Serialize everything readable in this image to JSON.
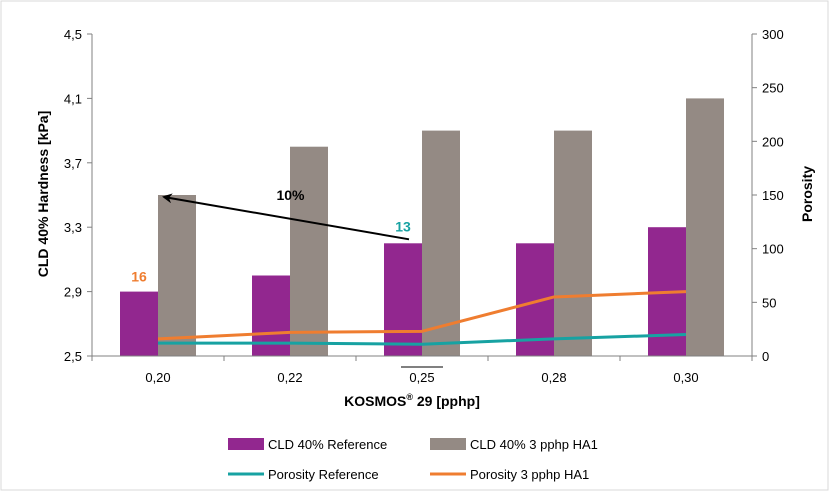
{
  "chart_data": {
    "type": "bar",
    "categories": [
      "0,20",
      "0,22",
      "0,25",
      "0,28",
      "0,30"
    ],
    "xlabel": "KOSMOS® 29 [pphp]",
    "xlabel_main": "KOSMOS",
    "xlabel_sup": "®",
    "xlabel_rest": " 29 [pphp]",
    "ylabel": "CLD 40% Hardness [kPa]",
    "y2label": "Porosity",
    "ylim": [
      2.5,
      4.5
    ],
    "y2lim": [
      0,
      300
    ],
    "yticks": [
      "2,5",
      "2,9",
      "3,3",
      "3,7",
      "4,1",
      "4,5"
    ],
    "y2ticks": [
      "0",
      "50",
      "100",
      "150",
      "200",
      "250",
      "300"
    ],
    "series": [
      {
        "name": "CLD 40% Reference",
        "kind": "bar",
        "axis": "left",
        "color": "#92278f",
        "values": [
          2.9,
          3.0,
          3.2,
          3.2,
          3.3
        ]
      },
      {
        "name": "CLD 40% 3 pphp HA1",
        "kind": "bar",
        "axis": "left",
        "color": "#948a84",
        "values": [
          3.5,
          3.8,
          3.9,
          3.9,
          4.1
        ]
      },
      {
        "name": "Porosity Reference",
        "kind": "line",
        "axis": "right",
        "color": "#17a2a2",
        "values": [
          12,
          12,
          11,
          16,
          20
        ]
      },
      {
        "name": "Porosity 3 pphp HA1",
        "kind": "line",
        "axis": "right",
        "color": "#ef7d30",
        "values": [
          16,
          22,
          23,
          55,
          60
        ]
      }
    ],
    "annotations": [
      {
        "text": "16",
        "color": "#ef7d30"
      },
      {
        "text": "13",
        "color": "#17a2a2"
      },
      {
        "text": "10%",
        "color": "#000000"
      }
    ],
    "grid": false,
    "legend_position": "bottom"
  }
}
